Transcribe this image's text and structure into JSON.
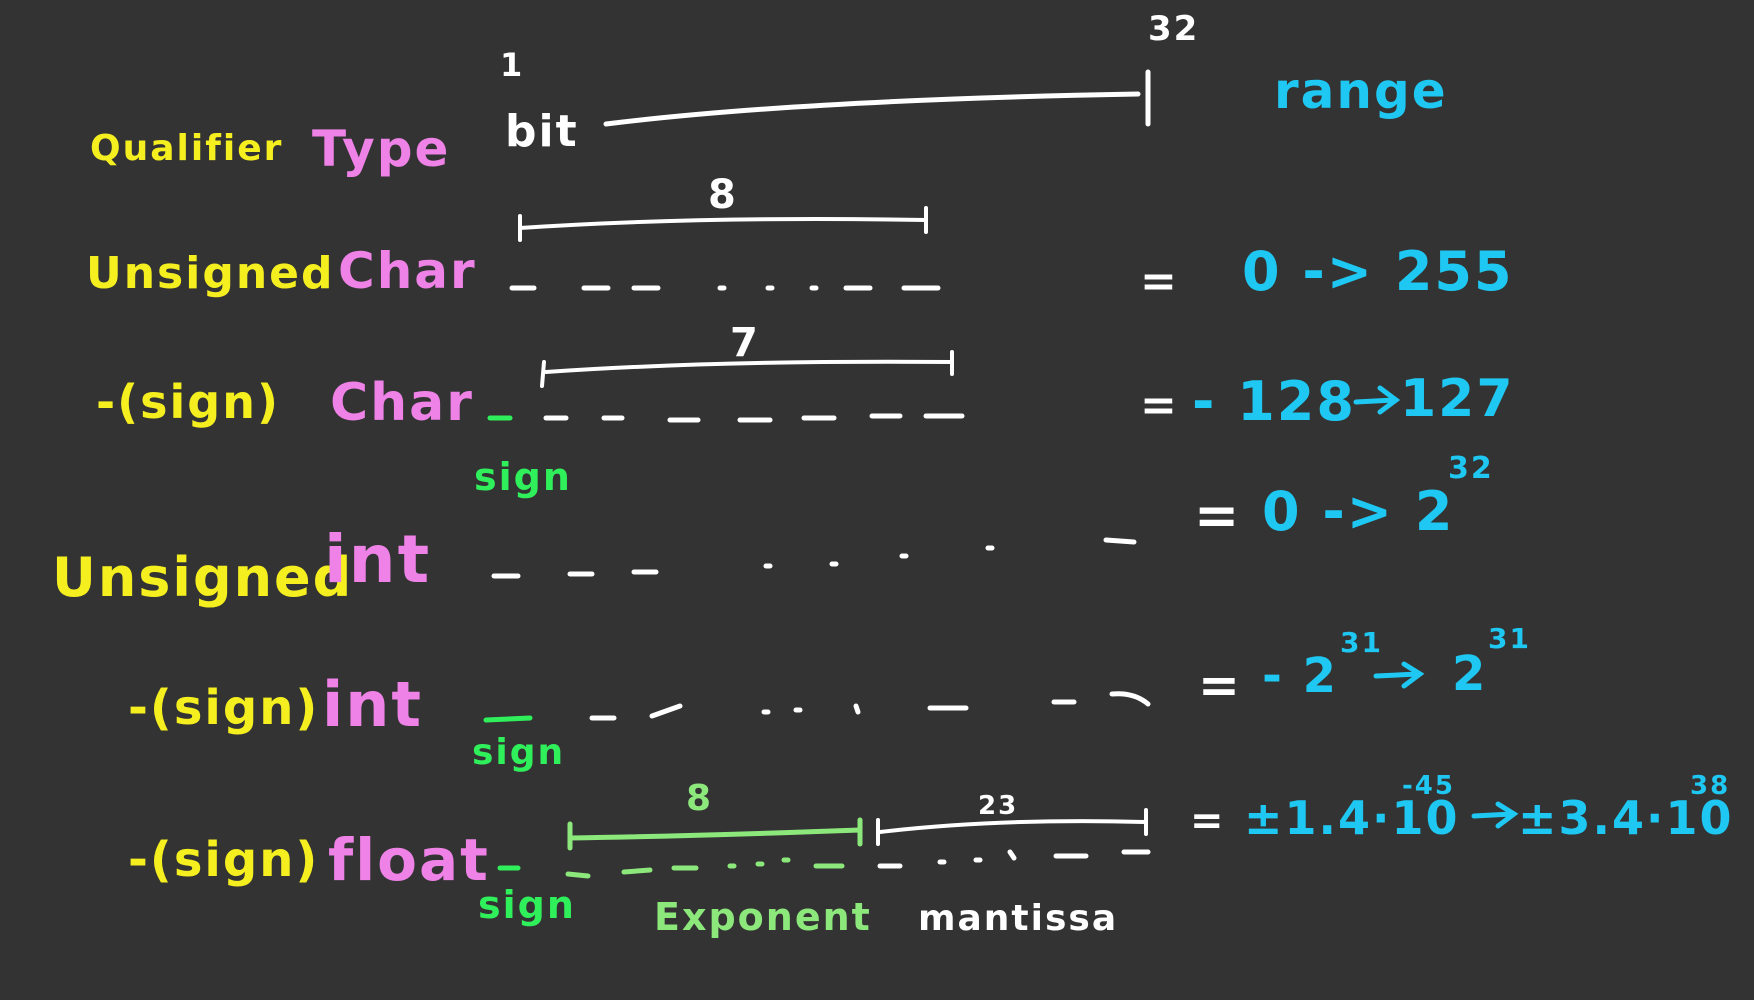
{
  "colors": {
    "background": "#333333",
    "qualifier": "#f5ef1f",
    "type": "#ee82e6",
    "bits": "#ffffff",
    "range": "#1ec8f2",
    "sign": "#2ff05a",
    "exponent": "#8de87c"
  },
  "header": {
    "bit_start": "1",
    "bit_end": "32",
    "qualifier": "Qualifier",
    "type": "Type",
    "bit": "bit",
    "range": "range"
  },
  "rows": {
    "unsigned_char": {
      "qualifier": "Unsigned",
      "type": "Char",
      "span": "8",
      "eq": "=",
      "range": "0 -> 255"
    },
    "signed_char": {
      "qualifier": "-(sign)",
      "type": "Char",
      "span": "7",
      "sign": "sign",
      "eq": "=",
      "range_from": "- 128",
      "range_to": "127"
    },
    "unsigned_int": {
      "qualifier": "Unsigned",
      "type": "int",
      "eq": "=",
      "range_base": "0 -> 2",
      "range_exp": "32"
    },
    "signed_int": {
      "qualifier": "-(sign)",
      "type": "int",
      "sign": "sign",
      "eq": "=",
      "range_from": "- 2",
      "range_from_exp": "31",
      "range_to": "2",
      "range_to_exp": "31"
    },
    "signed_float": {
      "qualifier": "-(sign)",
      "type": "float",
      "sign": "sign",
      "exponent_span": "8",
      "mantissa_span": "23",
      "exponent_label": "Exponent",
      "mantissa_label": "mantissa",
      "eq": "=",
      "range_from": "±1.4·10",
      "range_from_exp": "-45",
      "range_to": "±3.4·10",
      "range_to_exp": "38"
    }
  }
}
